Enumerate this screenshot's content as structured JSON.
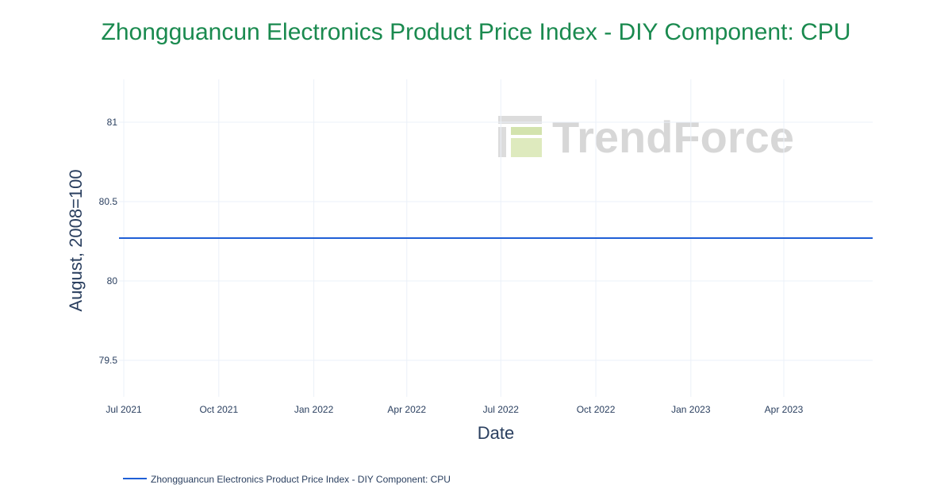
{
  "colors": {
    "title": "#1a8a4f",
    "text": "#2a3f5f",
    "grid": "#ebf0f8",
    "series": "#1f5fd6",
    "watermark": "#d3d3d3",
    "watermark_accent": "#c8dca0"
  },
  "watermark": {
    "text": "TrendForce"
  },
  "chart_data": {
    "type": "line",
    "title": "Zhongguancun Electronics Product Price Index - DIY Component: CPU",
    "xlabel": "Date",
    "ylabel": "August, 2008=100",
    "x_ticks": [
      {
        "date": "2021-07-01",
        "label": "Jul 2021"
      },
      {
        "date": "2021-10-01",
        "label": "Oct 2021"
      },
      {
        "date": "2022-01-01",
        "label": "Jan 2022"
      },
      {
        "date": "2022-04-01",
        "label": "Apr 2022"
      },
      {
        "date": "2022-07-01",
        "label": "Jul 2022"
      },
      {
        "date": "2022-10-01",
        "label": "Oct 2022"
      },
      {
        "date": "2023-01-01",
        "label": "Jan 2023"
      },
      {
        "date": "2023-04-01",
        "label": "Apr 2023"
      }
    ],
    "y_ticks": [
      {
        "value": 79.5,
        "label": "79.5"
      },
      {
        "value": 80,
        "label": "80"
      },
      {
        "value": 80.5,
        "label": "80.5"
      },
      {
        "value": 81,
        "label": "81"
      }
    ],
    "xlim": [
      "2021-07-01",
      "2023-06-26"
    ],
    "ylim": [
      79.27,
      81.27
    ],
    "grid": true,
    "legend_position": "bottom-left",
    "series": [
      {
        "name": "Zhongguancun Electronics Product Price Index - DIY Component: CPU",
        "x": [
          "2021-06-15",
          "2023-06-26"
        ],
        "y": [
          80.27,
          80.27
        ]
      }
    ]
  }
}
